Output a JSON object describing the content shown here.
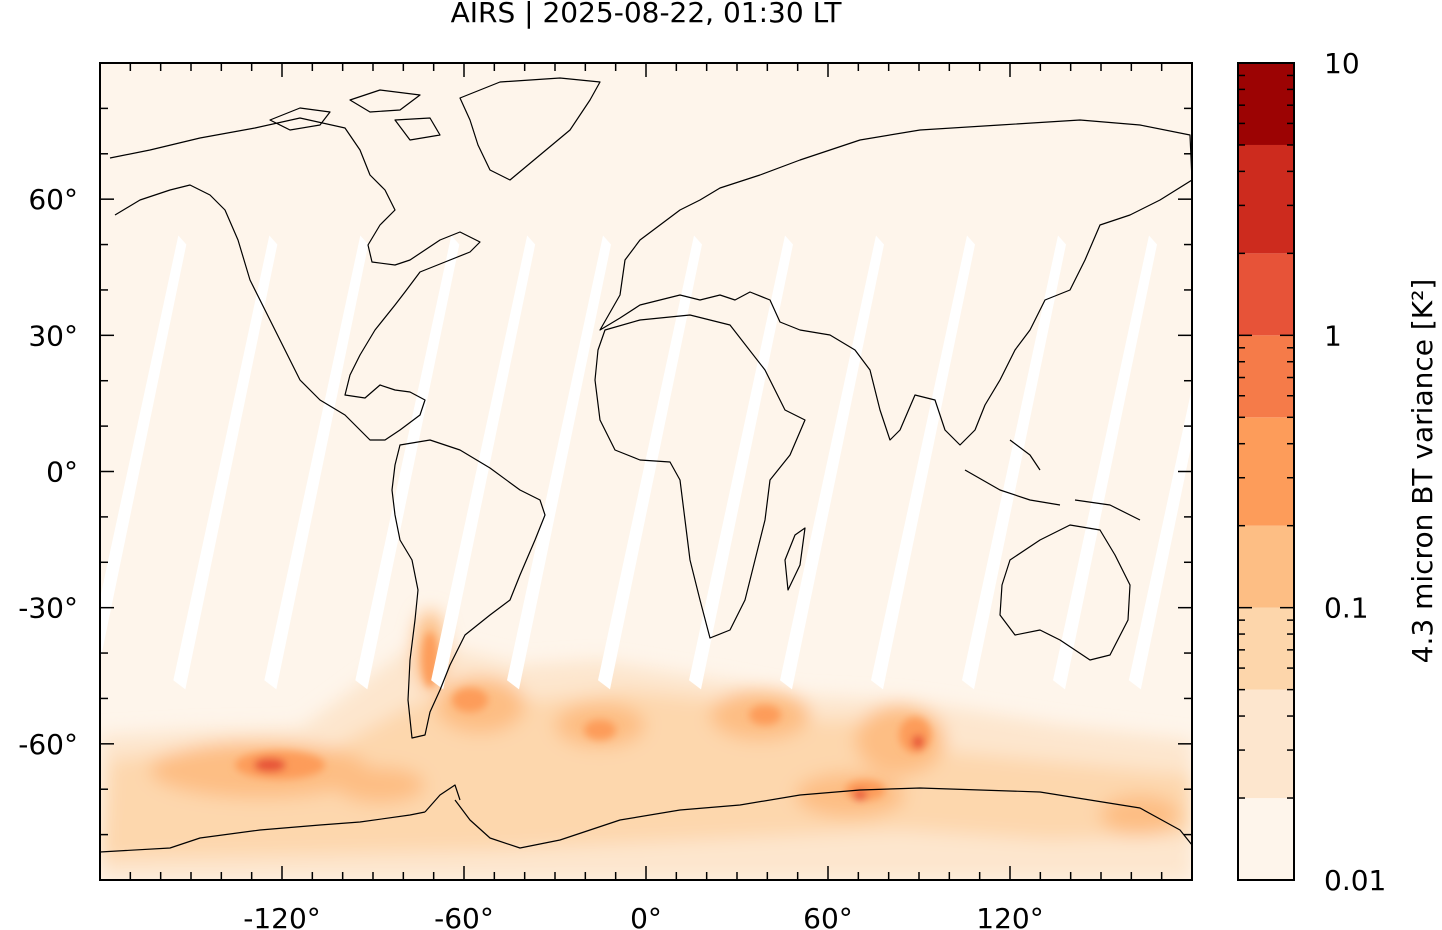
{
  "title": "AIRS | 2025-08-22, 01:30 LT",
  "map": {
    "projection": "equirectangular",
    "lon_range": [
      -180,
      180
    ],
    "lat_range": [
      -90,
      90
    ],
    "lon_ticks": [
      -120,
      -60,
      0,
      60,
      120
    ],
    "lon_tick_labels": [
      "-120°",
      "-60°",
      "0°",
      "60°",
      "120°"
    ],
    "lat_ticks": [
      60,
      30,
      0,
      -30,
      -60
    ],
    "lat_tick_labels": [
      "60°",
      "30°",
      "0°",
      "-30°",
      "-60°"
    ],
    "coastlines": "black",
    "swath_gaps": "white diagonal stripes between orbits (no data)",
    "background_color": "#fef5eb"
  },
  "colorbar": {
    "label": "4.3 micron BT variance [K²]",
    "scale": "log",
    "range": [
      0.01,
      10
    ],
    "tick_values": [
      10,
      1,
      0.1,
      0.01
    ],
    "tick_labels": [
      "10",
      "1",
      "0.1",
      "0.01"
    ],
    "bins": [
      {
        "from": 0.01,
        "to": 0.02,
        "color": "#fef5eb"
      },
      {
        "from": 0.02,
        "to": 0.05,
        "color": "#fde6ce"
      },
      {
        "from": 0.05,
        "to": 0.1,
        "color": "#fdd6ab"
      },
      {
        "from": 0.1,
        "to": 0.2,
        "color": "#fdbe84"
      },
      {
        "from": 0.2,
        "to": 0.5,
        "color": "#fd9c5a"
      },
      {
        "from": 0.5,
        "to": 1,
        "color": "#f57b49"
      },
      {
        "from": 1,
        "to": 2,
        "color": "#e75338"
      },
      {
        "from": 2,
        "to": 5,
        "color": "#cd2b1e"
      },
      {
        "from": 5,
        "to": 10,
        "color": "#9c0303"
      }
    ]
  }
}
